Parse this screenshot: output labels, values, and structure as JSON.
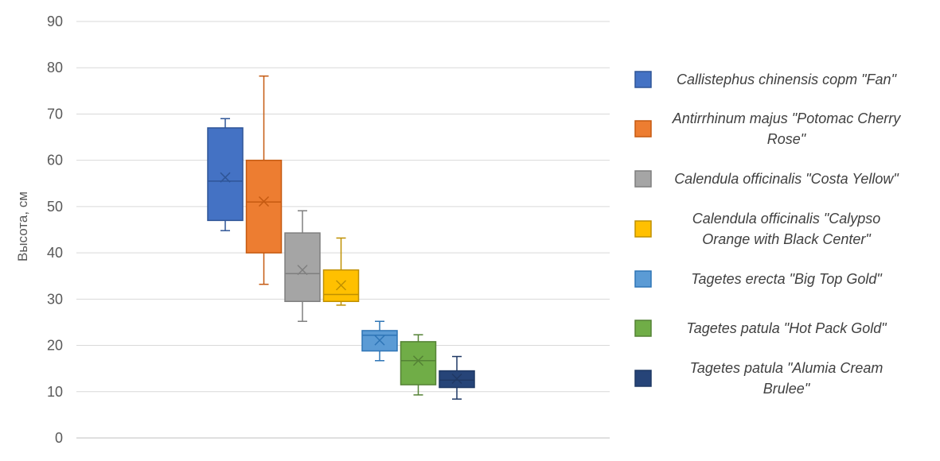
{
  "chart_data": {
    "type": "boxplot",
    "title": "",
    "xlabel": "",
    "ylabel": "Высота, см",
    "ylim": [
      0,
      90
    ],
    "yticks": [
      0,
      10,
      20,
      30,
      40,
      50,
      60,
      70,
      80,
      90
    ],
    "grid": true,
    "legend_position": "right",
    "series": [
      {
        "name": "Callistephus chinensis сорт \"Fan\"",
        "legend_lines": [
          "Callistephus chinensis сорт \"Fan\""
        ],
        "color": "#4472C4",
        "stroke": "#2F5597",
        "min": 44.8,
        "q1": 47,
        "median": 55.5,
        "mean": 56.3,
        "q3": 67,
        "max": 69
      },
      {
        "name": "Antirrhinum majus \"Potomac Cherry Rose\"",
        "legend_lines": [
          "Antirrhinum majus \"Potomac Cherry",
          "Rose\""
        ],
        "color": "#ED7D31",
        "stroke": "#C55A11",
        "min": 33.2,
        "q1": 40,
        "median": 51,
        "mean": 51.1,
        "q3": 60,
        "max": 78.2
      },
      {
        "name": "Calendula officinalis \"Costa Yellow\"",
        "legend_lines": [
          "Calendula officinalis \"Costa Yellow\""
        ],
        "color": "#A5A5A5",
        "stroke": "#7F7F7F",
        "min": 25.2,
        "q1": 29.5,
        "median": 35.5,
        "mean": 36.3,
        "q3": 44.3,
        "max": 49.1
      },
      {
        "name": "Calendula officinalis \"Calypso Orange with Black Center\"",
        "legend_lines": [
          "Calendula officinalis \"Calypso",
          "Orange with Black Center\""
        ],
        "color": "#FFC000",
        "stroke": "#BF9000",
        "min": 28.7,
        "q1": 29.5,
        "median": 31,
        "mean": 33,
        "q3": 36.3,
        "max": 43.2
      },
      {
        "name": "Tagetes erecta \"Big Top Gold\"",
        "legend_lines": [
          "Tagetes erecta \"Big Top Gold\""
        ],
        "color": "#5B9BD5",
        "stroke": "#2E75B6",
        "min": 16.7,
        "q1": 18.8,
        "median": 22.2,
        "mean": 21.1,
        "q3": 23.2,
        "max": 25.2
      },
      {
        "name": "Tagetes patula \"Hot Pack Gold\"",
        "legend_lines": [
          "Tagetes patula \"Hot Pack Gold\""
        ],
        "color": "#70AD47",
        "stroke": "#548235",
        "min": 9.3,
        "q1": 11.5,
        "median": 16.7,
        "mean": 16.7,
        "q3": 20.8,
        "max": 22.3
      },
      {
        "name": "Tagetes patula \"Alumia Cream Brulee\"",
        "legend_lines": [
          "Tagetes patula \"Alumia Cream",
          "Brulee\""
        ],
        "color": "#264478",
        "stroke": "#1F3864",
        "min": 8.4,
        "q1": 10.9,
        "median": 12.5,
        "mean": 12.8,
        "q3": 14.5,
        "max": 17.6
      }
    ]
  }
}
